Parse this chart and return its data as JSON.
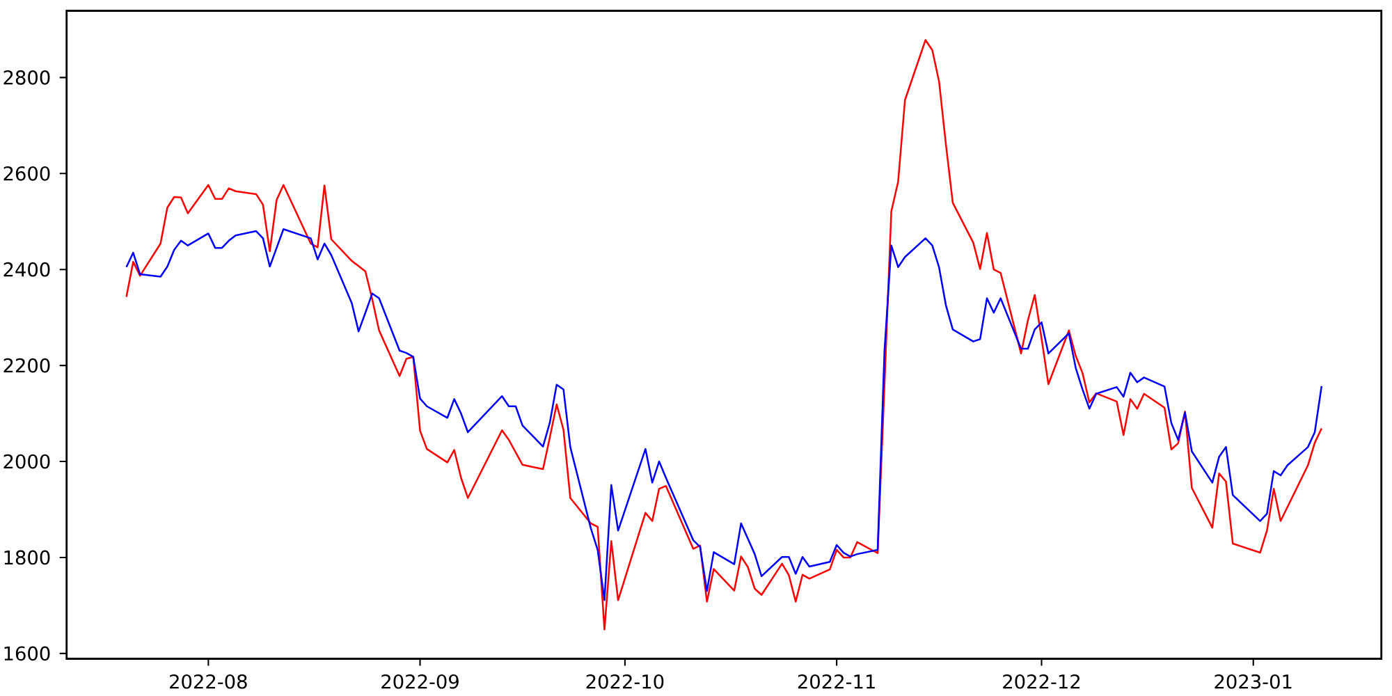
{
  "chart_data": {
    "type": "line",
    "x": [
      "2022-07-20",
      "2022-07-21",
      "2022-07-22",
      "2022-07-25",
      "2022-07-26",
      "2022-07-27",
      "2022-07-28",
      "2022-07-29",
      "2022-08-01",
      "2022-08-02",
      "2022-08-03",
      "2022-08-04",
      "2022-08-05",
      "2022-08-08",
      "2022-08-09",
      "2022-08-10",
      "2022-08-11",
      "2022-08-12",
      "2022-08-16",
      "2022-08-17",
      "2022-08-18",
      "2022-08-19",
      "2022-08-22",
      "2022-08-23",
      "2022-08-24",
      "2022-08-25",
      "2022-08-26",
      "2022-08-29",
      "2022-08-30",
      "2022-08-31",
      "2022-09-01",
      "2022-09-02",
      "2022-09-05",
      "2022-09-06",
      "2022-09-07",
      "2022-09-08",
      "2022-09-13",
      "2022-09-14",
      "2022-09-15",
      "2022-09-16",
      "2022-09-19",
      "2022-09-20",
      "2022-09-21",
      "2022-09-22",
      "2022-09-23",
      "2022-09-26",
      "2022-09-27",
      "2022-09-28",
      "2022-09-29",
      "2022-09-30",
      "2022-10-04",
      "2022-10-05",
      "2022-10-06",
      "2022-10-07",
      "2022-10-11",
      "2022-10-12",
      "2022-10-13",
      "2022-10-14",
      "2022-10-17",
      "2022-10-18",
      "2022-10-19",
      "2022-10-20",
      "2022-10-21",
      "2022-10-24",
      "2022-10-25",
      "2022-10-26",
      "2022-10-27",
      "2022-10-28",
      "2022-10-31",
      "2022-11-01",
      "2022-11-02",
      "2022-11-03",
      "2022-11-04",
      "2022-11-07",
      "2022-11-08",
      "2022-11-09",
      "2022-11-10",
      "2022-11-11",
      "2022-11-14",
      "2022-11-15",
      "2022-11-16",
      "2022-11-17",
      "2022-11-18",
      "2022-11-21",
      "2022-11-22",
      "2022-11-23",
      "2022-11-24",
      "2022-11-25",
      "2022-11-28",
      "2022-11-29",
      "2022-11-30",
      "2022-12-01",
      "2022-12-02",
      "2022-12-05",
      "2022-12-06",
      "2022-12-07",
      "2022-12-08",
      "2022-12-09",
      "2022-12-12",
      "2022-12-13",
      "2022-12-14",
      "2022-12-15",
      "2022-12-16",
      "2022-12-19",
      "2022-12-20",
      "2022-12-21",
      "2022-12-22",
      "2022-12-23",
      "2022-12-26",
      "2022-12-27",
      "2022-12-28",
      "2022-12-29",
      "2023-01-02",
      "2023-01-03",
      "2023-01-04",
      "2023-01-05",
      "2023-01-06",
      "2023-01-09",
      "2023-01-10",
      "2023-01-11"
    ],
    "series": [
      {
        "color": "#ff0000",
        "values": [
          2343,
          2416,
          2387,
          2454,
          2529,
          2551,
          2550,
          2517,
          2576,
          2547,
          2547,
          2569,
          2563,
          2557,
          2535,
          2438,
          2545,
          2576,
          2454,
          2446,
          2575,
          2463,
          2418,
          2407,
          2396,
          2338,
          2273,
          2178,
          2214,
          2218,
          2064,
          2026,
          1998,
          2024,
          1966,
          1924,
          2065,
          2045,
          2019,
          1993,
          1984,
          2050,
          2119,
          2066,
          1924,
          1871,
          1864,
          1650,
          1834,
          1711,
          1893,
          1876,
          1943,
          1949,
          1818,
          1825,
          1708,
          1776,
          1731,
          1802,
          1780,
          1735,
          1722,
          1787,
          1763,
          1708,
          1764,
          1756,
          1775,
          1816,
          1800,
          1800,
          1832,
          1809,
          2160,
          2521,
          2583,
          2753,
          2878,
          2857,
          2791,
          2660,
          2539,
          2456,
          2401,
          2476,
          2400,
          2393,
          2225,
          2294,
          2347,
          2256,
          2161,
          2273,
          2220,
          2184,
          2123,
          2142,
          2125,
          2055,
          2130,
          2110,
          2141,
          2112,
          2025,
          2038,
          2104,
          1945,
          1862,
          1975,
          1958,
          1829,
          1810,
          1856,
          1943,
          1876,
          1905,
          1992,
          2039,
          2069
        ]
      },
      {
        "color": "#0000ff",
        "values": [
          2405,
          2435,
          2390,
          2385,
          2406,
          2441,
          2460,
          2450,
          2475,
          2445,
          2445,
          2460,
          2471,
          2480,
          2465,
          2406,
          2445,
          2484,
          2465,
          2421,
          2454,
          2430,
          2330,
          2271,
          2310,
          2350,
          2340,
          2231,
          2226,
          2218,
          2131,
          2115,
          2091,
          2130,
          2100,
          2061,
          2136,
          2115,
          2115,
          2075,
          2031,
          2081,
          2160,
          2150,
          2030,
          1861,
          1816,
          1711,
          1951,
          1856,
          2026,
          1956,
          2000,
          1966,
          1836,
          1822,
          1730,
          1811,
          1786,
          1871,
          1839,
          1807,
          1761,
          1801,
          1801,
          1766,
          1801,
          1781,
          1791,
          1826,
          1810,
          1802,
          1807,
          1816,
          2230,
          2450,
          2405,
          2426,
          2465,
          2450,
          2404,
          2325,
          2275,
          2250,
          2255,
          2340,
          2310,
          2340,
          2235,
          2235,
          2275,
          2290,
          2225,
          2267,
          2195,
          2150,
          2110,
          2141,
          2155,
          2135,
          2185,
          2165,
          2175,
          2156,
          2080,
          2045,
          2102,
          2021,
          1956,
          2010,
          2030,
          1930,
          1876,
          1891,
          1980,
          1971,
          1992,
          2030,
          2061,
          2157
        ]
      }
    ],
    "xlim": [
      "2022-07-11T06:00",
      "2023-01-19T18:00"
    ],
    "ylim": [
      1589,
      2939
    ],
    "xticks": [
      {
        "value": "2022-08-01",
        "label": "2022-08"
      },
      {
        "value": "2022-09-01",
        "label": "2022-09"
      },
      {
        "value": "2022-10-01",
        "label": "2022-10"
      },
      {
        "value": "2022-11-01",
        "label": "2022-11"
      },
      {
        "value": "2022-12-01",
        "label": "2022-12"
      },
      {
        "value": "2023-01-01",
        "label": "2023-01"
      }
    ],
    "yticks": [
      1600,
      1800,
      2000,
      2200,
      2400,
      2600,
      2800
    ]
  }
}
